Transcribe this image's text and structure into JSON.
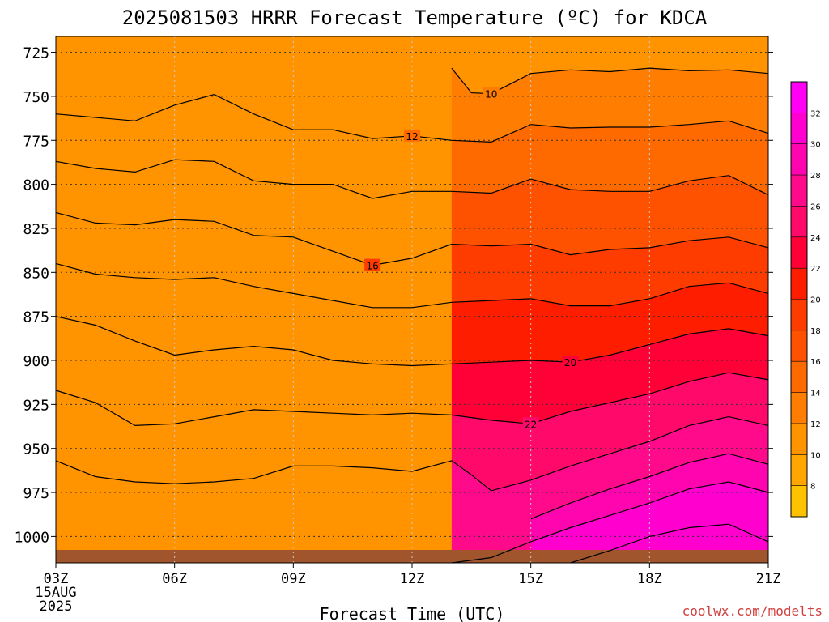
{
  "chart_data": {
    "type": "contour",
    "title": "2025081503 HRRR Forecast Temperature (ºC) for KDCA",
    "xlabel": "Forecast Time (UTC)",
    "x_ticks": [
      "03Z",
      "06Z",
      "09Z",
      "12Z",
      "15Z",
      "18Z",
      "21Z"
    ],
    "x_hours": [
      3,
      6,
      9,
      12,
      15,
      18,
      21
    ],
    "x_start_date": [
      "15AUG",
      "2025"
    ],
    "y_ticks": [
      725,
      750,
      775,
      800,
      825,
      850,
      875,
      900,
      925,
      950,
      975,
      1000
    ],
    "ylim": [
      1015,
      716
    ],
    "xlim": [
      3,
      21
    ],
    "grid": true,
    "colorbar": {
      "ticks": [
        8,
        10,
        12,
        14,
        16,
        18,
        20,
        22,
        24,
        26,
        28,
        30,
        32
      ],
      "colors": [
        "#ffc200",
        "#ffa700",
        "#ff9300",
        "#ff7d00",
        "#ff6a00",
        "#ff5200",
        "#ff3c00",
        "#ff1d00",
        "#ff0037",
        "#ff0a6a",
        "#ff0a8b",
        "#ff05b0",
        "#ff00ce",
        "#ff00f5"
      ]
    },
    "isotherms": [
      {
        "value": 10,
        "label": "10",
        "label_at": [
          14,
          748.5
        ],
        "points": [
          [
            13,
            734
          ],
          [
            13.5,
            748
          ],
          [
            14,
            748.5
          ],
          [
            15,
            737
          ],
          [
            16,
            735
          ],
          [
            17,
            736
          ],
          [
            18,
            734
          ],
          [
            19,
            735.5
          ],
          [
            20,
            735
          ],
          [
            21,
            737
          ]
        ]
      },
      {
        "value": 12,
        "label": "12",
        "label_at": [
          12,
          772.5
        ],
        "points": [
          [
            3,
            760
          ],
          [
            4,
            762
          ],
          [
            5,
            764
          ],
          [
            6,
            755
          ],
          [
            7,
            749
          ],
          [
            8,
            760
          ],
          [
            9,
            769
          ],
          [
            10,
            769
          ],
          [
            11,
            774
          ],
          [
            12,
            772.5
          ],
          [
            13,
            775
          ],
          [
            14,
            776
          ],
          [
            15,
            766
          ],
          [
            16,
            768
          ],
          [
            17,
            767.5
          ],
          [
            18,
            767.5
          ],
          [
            19,
            766
          ],
          [
            20,
            764
          ],
          [
            21,
            771
          ]
        ]
      },
      {
        "value": 14,
        "label": "",
        "points": [
          [
            3,
            787
          ],
          [
            4,
            791
          ],
          [
            5,
            793
          ],
          [
            6,
            786
          ],
          [
            7,
            787
          ],
          [
            8,
            798
          ],
          [
            9,
            800
          ],
          [
            10,
            800
          ],
          [
            11,
            808
          ],
          [
            12,
            804
          ],
          [
            13,
            804
          ],
          [
            14,
            805
          ],
          [
            15,
            797
          ],
          [
            16,
            803
          ],
          [
            17,
            804
          ],
          [
            18,
            804
          ],
          [
            19,
            798
          ],
          [
            20,
            795
          ],
          [
            21,
            806
          ]
        ]
      },
      {
        "value": 16,
        "label": "16",
        "label_at": [
          11,
          846
        ],
        "points": [
          [
            3,
            816
          ],
          [
            4,
            822
          ],
          [
            5,
            823
          ],
          [
            6,
            820
          ],
          [
            7,
            821
          ],
          [
            8,
            829
          ],
          [
            9,
            830
          ],
          [
            10,
            838
          ],
          [
            11,
            846
          ],
          [
            12,
            842
          ],
          [
            13,
            834
          ],
          [
            14,
            835
          ],
          [
            15,
            834
          ],
          [
            16,
            840
          ],
          [
            17,
            837
          ],
          [
            18,
            836
          ],
          [
            19,
            832
          ],
          [
            20,
            830
          ],
          [
            21,
            836
          ]
        ]
      },
      {
        "value": 18,
        "label": "",
        "points": [
          [
            3,
            845
          ],
          [
            4,
            851
          ],
          [
            5,
            853
          ],
          [
            6,
            854
          ],
          [
            7,
            853
          ],
          [
            8,
            858
          ],
          [
            9,
            862
          ],
          [
            10,
            866
          ],
          [
            11,
            870
          ],
          [
            12,
            870
          ],
          [
            13,
            867
          ],
          [
            14,
            866
          ],
          [
            15,
            865
          ],
          [
            16,
            869
          ],
          [
            17,
            869
          ],
          [
            18,
            865
          ],
          [
            19,
            858
          ],
          [
            20,
            856
          ],
          [
            21,
            862
          ]
        ]
      },
      {
        "value": 20,
        "label": "20",
        "label_at": [
          16,
          901
        ],
        "points": [
          [
            3,
            875
          ],
          [
            4,
            880
          ],
          [
            5,
            889
          ],
          [
            6,
            897
          ],
          [
            7,
            894
          ],
          [
            8,
            892
          ],
          [
            9,
            894
          ],
          [
            10,
            900
          ],
          [
            11,
            902
          ],
          [
            12,
            903
          ],
          [
            13,
            902
          ],
          [
            14,
            901
          ],
          [
            15,
            900
          ],
          [
            16,
            901
          ],
          [
            17,
            897
          ],
          [
            18,
            891
          ],
          [
            19,
            885
          ],
          [
            20,
            882
          ],
          [
            21,
            886
          ]
        ]
      },
      {
        "value": 22,
        "label": "22",
        "label_at": [
          15,
          936
        ],
        "points": [
          [
            3,
            917
          ],
          [
            4,
            924
          ],
          [
            5,
            937
          ],
          [
            6,
            936
          ],
          [
            7,
            932
          ],
          [
            8,
            928
          ],
          [
            9,
            929
          ],
          [
            10,
            930
          ],
          [
            11,
            931
          ],
          [
            12,
            930
          ],
          [
            13,
            931
          ],
          [
            14,
            934
          ],
          [
            15,
            936
          ],
          [
            16,
            929
          ],
          [
            17,
            924
          ],
          [
            18,
            919
          ],
          [
            19,
            912
          ],
          [
            20,
            907
          ],
          [
            21,
            911
          ]
        ]
      },
      {
        "value": 24,
        "label": "",
        "points": [
          [
            3,
            957
          ],
          [
            4,
            966
          ],
          [
            5,
            969
          ],
          [
            6,
            970
          ],
          [
            7,
            969
          ],
          [
            8,
            967
          ],
          [
            9,
            960
          ],
          [
            10,
            960
          ],
          [
            11,
            961
          ],
          [
            12,
            963
          ],
          [
            13,
            957
          ],
          [
            13.5,
            965
          ],
          [
            14,
            974
          ],
          [
            15,
            968
          ],
          [
            16,
            960
          ],
          [
            17,
            953
          ],
          [
            18,
            946
          ],
          [
            19,
            937
          ],
          [
            20,
            932
          ],
          [
            21,
            937
          ]
        ]
      },
      {
        "value": 26,
        "label": "",
        "points": [
          [
            15,
            990
          ],
          [
            16,
            981
          ],
          [
            17,
            973
          ],
          [
            18,
            966
          ],
          [
            19,
            958
          ],
          [
            20,
            953
          ],
          [
            21,
            959
          ]
        ]
      },
      {
        "value": 28,
        "label": "",
        "points": [
          [
            13,
            1015
          ],
          [
            14,
            1012
          ],
          [
            15,
            1003
          ],
          [
            16,
            995
          ],
          [
            17,
            988
          ],
          [
            18,
            981
          ],
          [
            19,
            973
          ],
          [
            20,
            969
          ],
          [
            21,
            975
          ]
        ]
      },
      {
        "value": 30,
        "label": "",
        "points": [
          [
            16,
            1015
          ],
          [
            17,
            1008
          ],
          [
            18,
            1000
          ],
          [
            19,
            995
          ],
          [
            20,
            993
          ],
          [
            21,
            1003
          ]
        ]
      }
    ]
  },
  "credit": "coolwx.com/modelts"
}
